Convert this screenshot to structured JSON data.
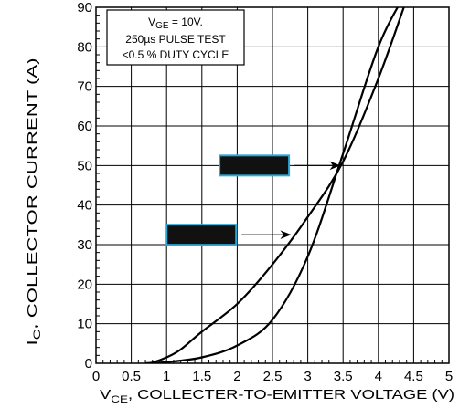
{
  "chart_data": {
    "type": "line",
    "xlabel": {
      "main": "V",
      "sub": "CE",
      "rest": ", COLLECTER-TO-EMITTER VOLTAGE (V)"
    },
    "ylabel": {
      "main": "I",
      "sub": "C",
      "rest": ", COLLECTOR CURRENT (A)"
    },
    "xlim": [
      0,
      5
    ],
    "ylim": [
      0,
      90
    ],
    "x_ticks": [
      "0",
      "0.5",
      "1",
      "1.5",
      "2",
      "2.5",
      "3",
      "3.5",
      "4",
      "4.5",
      "5"
    ],
    "y_ticks": [
      "0",
      "10",
      "20",
      "30",
      "40",
      "50",
      "60",
      "70",
      "80",
      "90"
    ],
    "grid": true,
    "legend": {
      "line1_main": "V",
      "line1_sub": "GE",
      "line1_rest": " = 10V.",
      "line2": "250µs PULSE TEST",
      "line3": "<0.5 % DUTY CYCLE"
    },
    "series": [
      {
        "points": [
          [
            0.7,
            0
          ],
          [
            0.8,
            0.2
          ],
          [
            1.0,
            1.5
          ],
          [
            1.2,
            3.5
          ],
          [
            1.5,
            8
          ],
          [
            2.0,
            15
          ],
          [
            2.5,
            25
          ],
          [
            3.0,
            37
          ],
          [
            3.5,
            51
          ],
          [
            4.0,
            72
          ],
          [
            4.4,
            92
          ]
        ]
      },
      {
        "points": [
          [
            0.7,
            0
          ],
          [
            1.0,
            0.3
          ],
          [
            1.5,
            1.5
          ],
          [
            2.0,
            4.5
          ],
          [
            2.5,
            11
          ],
          [
            3.0,
            27
          ],
          [
            3.5,
            53
          ],
          [
            4.0,
            80
          ],
          [
            4.4,
            94
          ]
        ]
      }
    ],
    "annotations": [
      {
        "label": "",
        "box_x": 1.75,
        "box_y": 50,
        "arrow_to": [
          3.45,
          50
        ],
        "color": "#111111",
        "border": "#2aa8d8"
      },
      {
        "label": "",
        "box_x": 1.0,
        "box_y": 32.5,
        "arrow_to": [
          2.75,
          32.5
        ],
        "color": "#111111",
        "border": "#2aa8d8"
      }
    ]
  }
}
